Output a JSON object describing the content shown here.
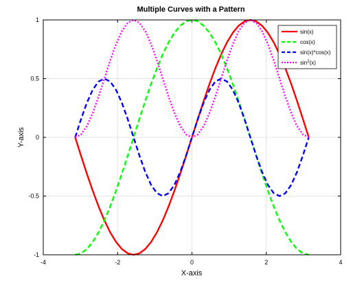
{
  "chart_data": {
    "type": "line",
    "title": "Multiple Curves with a Pattern",
    "xlabel": "X-axis",
    "ylabel": "Y-axis",
    "xlim": [
      -4,
      4
    ],
    "ylim": [
      -1,
      1
    ],
    "xticks": [
      -4,
      -2,
      0,
      2,
      4
    ],
    "yticks": [
      -1,
      -0.5,
      0,
      0.5,
      1
    ],
    "x_tick_labels": [
      "-4",
      "-2",
      "0",
      "2",
      "4"
    ],
    "y_tick_labels": [
      "-1",
      "-0.5",
      "0",
      "0.5",
      "1"
    ],
    "grid": true,
    "legend_position": "top-right",
    "x": [
      -3.1416,
      -2.9845,
      -2.8274,
      -2.6704,
      -2.5133,
      -2.3562,
      -2.1991,
      -2.042,
      -1.885,
      -1.7279,
      -1.5708,
      -1.4137,
      -1.2566,
      -1.0996,
      -0.9425,
      -0.7854,
      -0.6283,
      -0.4712,
      -0.3142,
      -0.1571,
      0,
      0.1571,
      0.3142,
      0.4712,
      0.6283,
      0.7854,
      0.9425,
      1.0996,
      1.2566,
      1.4137,
      1.5708,
      1.7279,
      1.885,
      2.042,
      2.1991,
      2.3562,
      2.5133,
      2.6704,
      2.8274,
      2.9845,
      3.1416
    ],
    "series": [
      {
        "name": "sin(x)",
        "color": "#ff0000",
        "style": "solid",
        "values": [
          0,
          -0.1564,
          -0.309,
          -0.454,
          -0.5878,
          -0.7071,
          -0.809,
          -0.891,
          -0.9511,
          -0.9877,
          -1,
          -0.9877,
          -0.9511,
          -0.891,
          -0.809,
          -0.7071,
          -0.5878,
          -0.454,
          -0.309,
          -0.1564,
          0,
          0.1564,
          0.309,
          0.454,
          0.5878,
          0.7071,
          0.809,
          0.891,
          0.9511,
          0.9877,
          1,
          0.9877,
          0.9511,
          0.891,
          0.809,
          0.7071,
          0.5878,
          0.454,
          0.309,
          0.1564,
          0
        ]
      },
      {
        "name": "cos(x)",
        "color": "#00ff00",
        "style": "dashed",
        "values": [
          -1,
          -0.9877,
          -0.9511,
          -0.891,
          -0.809,
          -0.7071,
          -0.5878,
          -0.454,
          -0.309,
          -0.1564,
          0,
          0.1564,
          0.309,
          0.454,
          0.5878,
          0.7071,
          0.809,
          0.891,
          0.9511,
          0.9877,
          1,
          0.9877,
          0.9511,
          0.891,
          0.809,
          0.7071,
          0.5878,
          0.454,
          0.309,
          0.1564,
          0,
          -0.1564,
          -0.309,
          -0.454,
          -0.5878,
          -0.7071,
          -0.809,
          -0.891,
          -0.9511,
          -0.9877,
          -1
        ]
      },
      {
        "name": "sin(x)*cos(x)",
        "color": "#0000ff",
        "style": "dashed",
        "values": [
          0,
          0.1545,
          0.2939,
          0.4045,
          0.4755,
          0.5,
          0.4755,
          0.4045,
          0.2939,
          0.1545,
          0,
          -0.1545,
          -0.2939,
          -0.4045,
          -0.4755,
          -0.5,
          -0.4755,
          -0.4045,
          -0.2939,
          -0.1545,
          0,
          0.1545,
          0.2939,
          0.4045,
          0.4755,
          0.5,
          0.4755,
          0.4045,
          0.2939,
          0.1545,
          0,
          -0.1545,
          -0.2939,
          -0.4045,
          -0.4755,
          -0.5,
          -0.4755,
          -0.4045,
          -0.2939,
          -0.1545,
          0
        ]
      },
      {
        "name": "sin",
        "name_superscript": "2",
        "name_suffix": "(x)",
        "color": "#ff00ff",
        "style": "dotted",
        "values": [
          0,
          0.0245,
          0.0955,
          0.2061,
          0.3455,
          0.5,
          0.6545,
          0.7939,
          0.9045,
          0.9755,
          1,
          0.9755,
          0.9045,
          0.7939,
          0.6545,
          0.5,
          0.3455,
          0.2061,
          0.0955,
          0.0245,
          0,
          0.0245,
          0.0955,
          0.2061,
          0.3455,
          0.5,
          0.6545,
          0.7939,
          0.9045,
          0.9755,
          1,
          0.9755,
          0.9045,
          0.7939,
          0.6545,
          0.5,
          0.3455,
          0.2061,
          0.0955,
          0.0245,
          0
        ]
      }
    ]
  }
}
